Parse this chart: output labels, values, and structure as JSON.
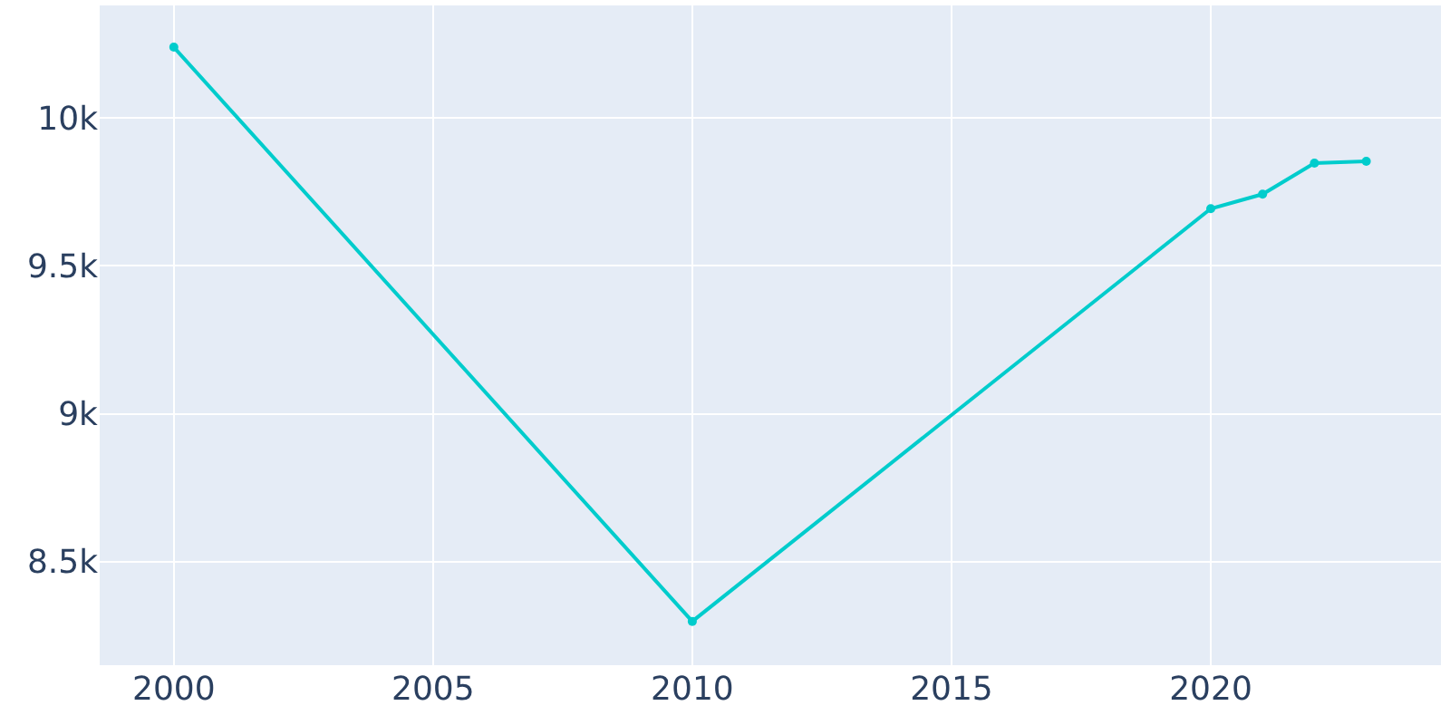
{
  "chart_data": {
    "type": "line",
    "x": [
      2000,
      2010,
      2020,
      2021,
      2022,
      2023
    ],
    "series": [
      {
        "color": "#00cccc",
        "values": [
          10239,
          8298,
          9693,
          9742,
          9847,
          9853
        ]
      }
    ],
    "xlim": [
      1998.57,
      2024.44
    ],
    "xticks": [
      2000,
      2005,
      2010,
      2015,
      2020
    ],
    "ylim": [
      8150,
      10380
    ],
    "yticks": [
      {
        "value": 8500,
        "label": "8.5k"
      },
      {
        "value": 9000,
        "label": "9k"
      },
      {
        "value": 9500,
        "label": "9.5k"
      },
      {
        "value": 10000,
        "label": "10k"
      }
    ],
    "grid": true,
    "marker": "circle",
    "line_style": "solid",
    "legend": false
  }
}
